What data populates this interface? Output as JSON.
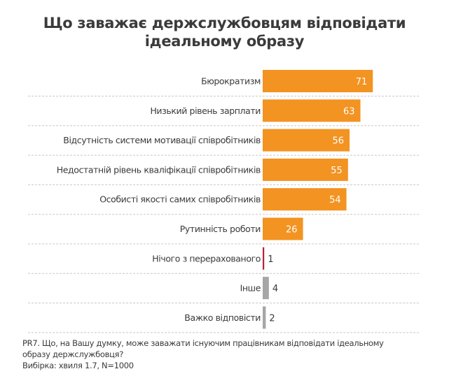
{
  "title_line1": "Що заважає держслужбовцям відповідати",
  "title_line2": "ідеальному образу",
  "chart_data": {
    "type": "bar",
    "orientation": "horizontal",
    "title": "Що заважає держслужбовцям відповідати ідеальному образу",
    "categories": [
      "Бюрократизм",
      "Низький рівень зарплати",
      "Відсутність системи мотивації співробітників",
      "Недостатній рівень кваліфікації співробітників",
      "Особисті якості самих співробітників",
      "Рутинність роботи",
      "Нічого з перерахованого",
      "Інше",
      "Важко відповісти"
    ],
    "values": [
      71,
      63,
      56,
      55,
      54,
      26,
      1,
      4,
      2
    ],
    "value_labels": [
      "71",
      "63",
      "56",
      "55",
      "54",
      "26",
      "1",
      "4",
      "2"
    ],
    "colors": [
      "#f39322",
      "#f39322",
      "#f39322",
      "#f39322",
      "#f39322",
      "#f39322",
      "#b0243a",
      "#a6a6a6",
      "#a6a6a6"
    ],
    "label_colors_inside": "#ffffff",
    "label_colors_outside": "#3a3a3a",
    "xlim": [
      0,
      100
    ],
    "grid": "dashed horizontal separators"
  },
  "footnote": {
    "question_line1": "PR7. Що, на Вашу думку, може заважати існуючим працівникам відповідати ідеальному",
    "question_line2": "образу держслужбовця?",
    "sample": "Вибірка: хвиля 1.7, N=1000"
  }
}
